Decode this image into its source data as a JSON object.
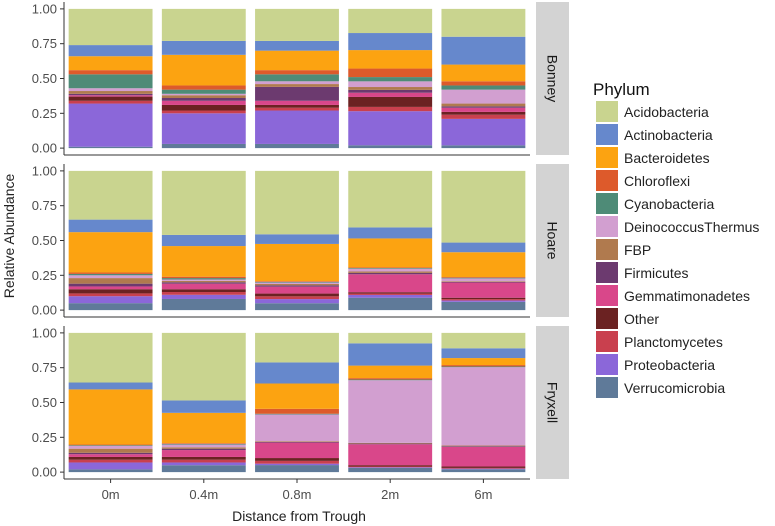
{
  "chart_data": {
    "type": "bar",
    "stacked": true,
    "title": "",
    "xlabel": "Distance from Trough",
    "ylabel": "Relative Abundance",
    "ylim": [
      0,
      1
    ],
    "yticks": [
      "0.00",
      "0.25",
      "0.50",
      "0.75",
      "1.00"
    ],
    "categories": [
      "0m",
      "0.4m",
      "0.8m",
      "2m",
      "6m"
    ],
    "legend": {
      "title": "Phylum",
      "position": "right"
    },
    "phyla": [
      {
        "name": "Acidobacteria",
        "color": "#c9d48f"
      },
      {
        "name": "Actinobacteria",
        "color": "#6688cc"
      },
      {
        "name": "Bacteroidetes",
        "color": "#fca311"
      },
      {
        "name": "Chloroflexi",
        "color": "#dd5a2b"
      },
      {
        "name": "Cyanobacteria",
        "color": "#4e8b77"
      },
      {
        "name": "DeinococcusThermus",
        "color": "#d29fd0"
      },
      {
        "name": "FBP",
        "color": "#b07a4e"
      },
      {
        "name": "Firmicutes",
        "color": "#6c3a6f"
      },
      {
        "name": "Gemmatimonadetes",
        "color": "#d9478a"
      },
      {
        "name": "Other",
        "color": "#6b2222"
      },
      {
        "name": "Planctomycetes",
        "color": "#c9404e"
      },
      {
        "name": "Proteobacteria",
        "color": "#8b67d9"
      },
      {
        "name": "Verrucomicrobia",
        "color": "#5f7a99"
      }
    ],
    "stack_order": [
      "Verrucomicrobia",
      "Proteobacteria",
      "Planctomycetes",
      "Other",
      "Gemmatimonadetes",
      "Firmicutes",
      "FBP",
      "DeinococcusThermus",
      "Cyanobacteria",
      "Chloroflexi",
      "Bacteroidetes",
      "Actinobacteria",
      "Acidobacteria"
    ],
    "facets": [
      {
        "name": "Bonney",
        "bars": {
          "0m": {
            "Verrucomicrobia": 0.01,
            "Proteobacteria": 0.31,
            "Planctomycetes": 0.02,
            "Other": 0.03,
            "Gemmatimonadetes": 0.01,
            "Firmicutes": 0.01,
            "FBP": 0.02,
            "DeinococcusThermus": 0.02,
            "Cyanobacteria": 0.1,
            "Chloroflexi": 0.03,
            "Bacteroidetes": 0.1,
            "Actinobacteria": 0.08,
            "Acidobacteria": 0.26
          },
          "0.4m": {
            "Verrucomicrobia": 0.03,
            "Proteobacteria": 0.22,
            "Planctomycetes": 0.02,
            "Other": 0.04,
            "Gemmatimonadetes": 0.03,
            "Firmicutes": 0.02,
            "FBP": 0.02,
            "DeinococcusThermus": 0.01,
            "Cyanobacteria": 0.03,
            "Chloroflexi": 0.03,
            "Bacteroidetes": 0.22,
            "Actinobacteria": 0.1,
            "Acidobacteria": 0.23
          },
          "0.8m": {
            "Verrucomicrobia": 0.03,
            "Proteobacteria": 0.24,
            "Planctomycetes": 0.02,
            "Other": 0.02,
            "Gemmatimonadetes": 0.03,
            "Firmicutes": 0.1,
            "FBP": 0.02,
            "DeinococcusThermus": 0.02,
            "Cyanobacteria": 0.05,
            "Chloroflexi": 0.03,
            "Bacteroidetes": 0.14,
            "Actinobacteria": 0.07,
            "Acidobacteria": 0.23
          },
          "2m": {
            "Verrucomicrobia": 0.02,
            "Proteobacteria": 0.24,
            "Planctomycetes": 0.03,
            "Other": 0.07,
            "Gemmatimonadetes": 0.03,
            "Firmicutes": 0.02,
            "FBP": 0.02,
            "DeinococcusThermus": 0.04,
            "Cyanobacteria": 0.03,
            "Chloroflexi": 0.06,
            "Bacteroidetes": 0.13,
            "Actinobacteria": 0.12,
            "Acidobacteria": 0.17
          },
          "6m": {
            "Verrucomicrobia": 0.02,
            "Proteobacteria": 0.19,
            "Planctomycetes": 0.03,
            "Other": 0.02,
            "Gemmatimonadetes": 0.03,
            "Firmicutes": 0.01,
            "FBP": 0.02,
            "DeinococcusThermus": 0.1,
            "Cyanobacteria": 0.03,
            "Chloroflexi": 0.03,
            "Bacteroidetes": 0.12,
            "Actinobacteria": 0.2,
            "Acidobacteria": 0.2
          }
        }
      },
      {
        "name": "Hoare",
        "bars": {
          "0m": {
            "Verrucomicrobia": 0.05,
            "Proteobacteria": 0.05,
            "Planctomycetes": 0.02,
            "Other": 0.03,
            "Gemmatimonadetes": 0.02,
            "Firmicutes": 0.02,
            "FBP": 0.04,
            "DeinococcusThermus": 0.02,
            "Cyanobacteria": 0.01,
            "Chloroflexi": 0.01,
            "Bacteroidetes": 0.29,
            "Actinobacteria": 0.09,
            "Acidobacteria": 0.35
          },
          "0.4m": {
            "Verrucomicrobia": 0.08,
            "Proteobacteria": 0.03,
            "Planctomycetes": 0.02,
            "Other": 0.02,
            "Gemmatimonadetes": 0.04,
            "Firmicutes": 0.01,
            "FBP": 0.01,
            "DeinococcusThermus": 0.01,
            "Cyanobacteria": 0.01,
            "Chloroflexi": 0.01,
            "Bacteroidetes": 0.22,
            "Actinobacteria": 0.08,
            "Acidobacteria": 0.46
          },
          "0.8m": {
            "Verrucomicrobia": 0.05,
            "Proteobacteria": 0.03,
            "Planctomycetes": 0.02,
            "Other": 0.02,
            "Gemmatimonadetes": 0.05,
            "Firmicutes": 0.01,
            "FBP": 0.01,
            "DeinococcusThermus": 0.01,
            "Cyanobacteria": 0.005,
            "Chloroflexi": 0.005,
            "Bacteroidetes": 0.27,
            "Actinobacteria": 0.07,
            "Acidobacteria": 0.46
          },
          "2m": {
            "Verrucomicrobia": 0.09,
            "Proteobacteria": 0.02,
            "Planctomycetes": 0.01,
            "Other": 0.01,
            "Gemmatimonadetes": 0.13,
            "Firmicutes": 0.01,
            "FBP": 0.01,
            "DeinococcusThermus": 0.02,
            "Cyanobacteria": 0.005,
            "Chloroflexi": 0.005,
            "Bacteroidetes": 0.21,
            "Actinobacteria": 0.08,
            "Acidobacteria": 0.41
          },
          "6m": {
            "Verrucomicrobia": 0.06,
            "Proteobacteria": 0.01,
            "Planctomycetes": 0.01,
            "Other": 0.01,
            "Gemmatimonadetes": 0.11,
            "Firmicutes": 0.005,
            "FBP": 0.005,
            "DeinococcusThermus": 0.02,
            "Cyanobacteria": 0.005,
            "Chloroflexi": 0.005,
            "Bacteroidetes": 0.18,
            "Actinobacteria": 0.07,
            "Acidobacteria": 0.52
          }
        }
      },
      {
        "name": "Fryxell",
        "bars": {
          "0m": {
            "Verrucomicrobia": 0.02,
            "Proteobacteria": 0.05,
            "Planctomycetes": 0.02,
            "Other": 0.02,
            "Gemmatimonadetes": 0.02,
            "Firmicutes": 0.01,
            "FBP": 0.03,
            "DeinococcusThermus": 0.02,
            "Cyanobacteria": 0.005,
            "Chloroflexi": 0.005,
            "Bacteroidetes": 0.4,
            "Actinobacteria": 0.05,
            "Acidobacteria": 0.36
          },
          "0.4m": {
            "Verrucomicrobia": 0.05,
            "Proteobacteria": 0.02,
            "Planctomycetes": 0.02,
            "Other": 0.02,
            "Gemmatimonadetes": 0.05,
            "Firmicutes": 0.01,
            "FBP": 0.01,
            "DeinococcusThermus": 0.02,
            "Cyanobacteria": 0.005,
            "Chloroflexi": 0.005,
            "Bacteroidetes": 0.22,
            "Actinobacteria": 0.09,
            "Acidobacteria": 0.49
          },
          "0.8m": {
            "Verrucomicrobia": 0.05,
            "Proteobacteria": 0.01,
            "Planctomycetes": 0.02,
            "Other": 0.02,
            "Gemmatimonadetes": 0.11,
            "Firmicutes": 0.005,
            "FBP": 0.005,
            "DeinococcusThermus": 0.19,
            "Cyanobacteria": 0.005,
            "Chloroflexi": 0.035,
            "Bacteroidetes": 0.18,
            "Actinobacteria": 0.15,
            "Acidobacteria": 0.21
          },
          "2m": {
            "Verrucomicrobia": 0.03,
            "Proteobacteria": 0.005,
            "Planctomycetes": 0.005,
            "Other": 0.01,
            "Gemmatimonadetes": 0.15,
            "Firmicutes": 0.005,
            "FBP": 0.005,
            "DeinococcusThermus": 0.45,
            "Cyanobacteria": 0.005,
            "Chloroflexi": 0.01,
            "Bacteroidetes": 0.09,
            "Actinobacteria": 0.16,
            "Acidobacteria": 0.075
          },
          "6m": {
            "Verrucomicrobia": 0.02,
            "Proteobacteria": 0.005,
            "Planctomycetes": 0.005,
            "Other": 0.01,
            "Gemmatimonadetes": 0.14,
            "Firmicutes": 0.005,
            "FBP": 0.005,
            "DeinococcusThermus": 0.56,
            "Cyanobacteria": 0.005,
            "Chloroflexi": 0.01,
            "Bacteroidetes": 0.05,
            "Actinobacteria": 0.07,
            "Acidobacteria": 0.11
          }
        }
      }
    ]
  }
}
